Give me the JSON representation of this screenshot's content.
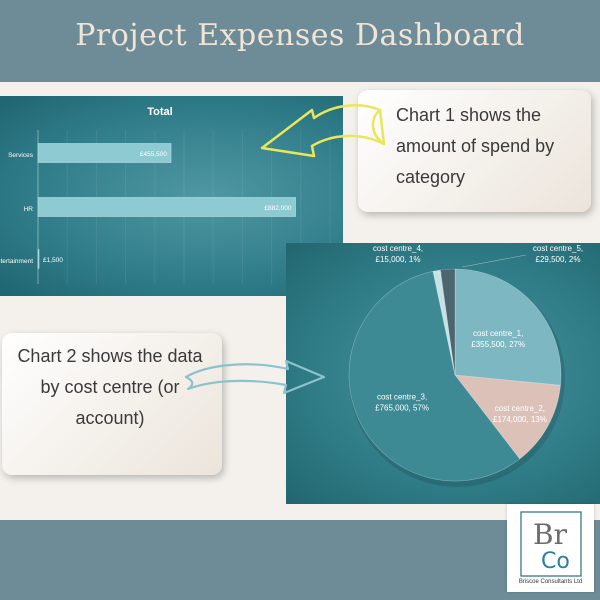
{
  "header": {
    "title": "Project Expenses Dashboard"
  },
  "callouts": {
    "chart1": "Chart 1 shows the amount of spend by category",
    "chart2": "Chart 2 shows the data by cost centre (or account)"
  },
  "logo": {
    "mark_top": "Br",
    "mark_bottom": "Co",
    "company": "Briscoe Consultants Ltd"
  },
  "colors": {
    "band": "#6e8b98",
    "chart_bg": "#2d7a86",
    "bar_fill": "#8ecad2",
    "slice_1": "#7db8c2",
    "slice_2": "#dcc1b8",
    "slice_3": "#3d8a95",
    "slice_4": "#c7e2e6",
    "slice_5": "#4d6570",
    "arrow_yellow": "#e9e65a",
    "arrow_blue": "#8cc2cc"
  },
  "chart_data": [
    {
      "type": "bar",
      "orientation": "horizontal",
      "title": "Total",
      "categories": [
        "Services",
        "HR",
        "Entertainment"
      ],
      "values": [
        455500,
        882000,
        1500
      ],
      "data_labels": [
        "£455,500",
        "£882,000",
        "£1,500"
      ],
      "xlim": [
        0,
        1000000
      ],
      "grid": true,
      "legend": "none"
    },
    {
      "type": "pie",
      "categories": [
        "cost centre_1",
        "cost centre_2",
        "cost centre_3",
        "cost centre_4",
        "cost centre_5"
      ],
      "values": [
        355500,
        174000,
        765000,
        15000,
        29500
      ],
      "data_labels": [
        [
          "cost centre_1,",
          "£355,500, 27%"
        ],
        [
          "cost centre_2,",
          "£174,000, 13%"
        ],
        [
          "cost centre_3,",
          "£765,000, 57%"
        ],
        [
          "cost centre_4,",
          "£15,000, 1%"
        ],
        [
          "cost centre_5,",
          "£29,500, 2%"
        ]
      ],
      "legend": "none"
    }
  ]
}
